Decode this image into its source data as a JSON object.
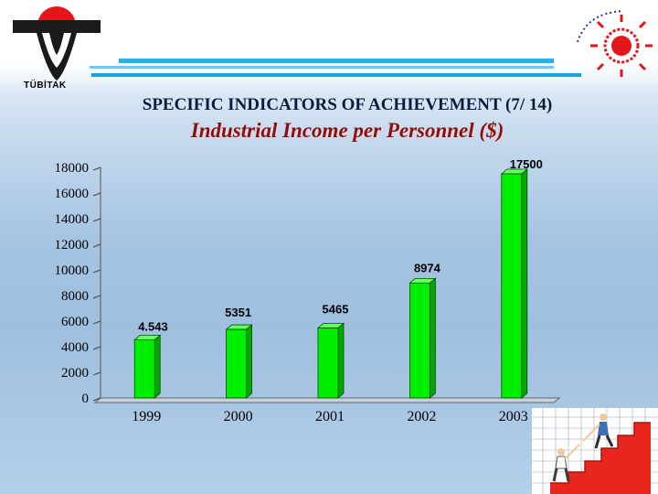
{
  "header": {
    "logo_text": "TÜBİTAK",
    "title": "SPECIFIC INDICATORS OF ACHIEVEMENT (7/ 14)"
  },
  "chart_data": {
    "type": "bar",
    "title": "Industrial Income per Personnel ($)",
    "categories": [
      "1999",
      "2000",
      "2001",
      "2002",
      "2003"
    ],
    "values": [
      4543,
      5351,
      5465,
      8974,
      17500
    ],
    "data_labels": [
      "4.543",
      "5351",
      "5465",
      "8974",
      "17500"
    ],
    "ylim": [
      0,
      18000
    ],
    "yticks": [
      0,
      2000,
      4000,
      6000,
      8000,
      10000,
      12000,
      14000,
      16000,
      18000
    ],
    "xlabel": "",
    "ylabel": "",
    "grid": false,
    "legend": "none",
    "bar_color": "#00ee00",
    "title_color": "#8a1010"
  }
}
